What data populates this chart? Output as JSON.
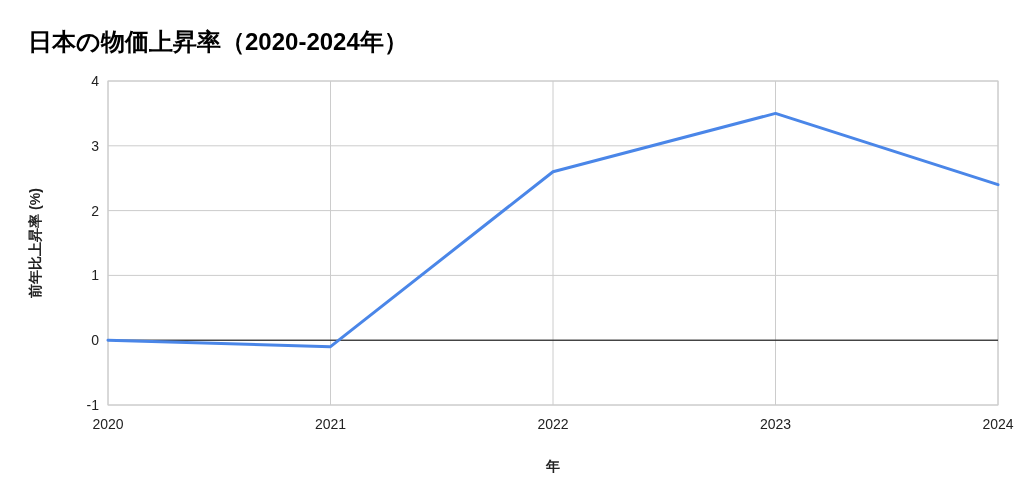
{
  "chart_data": {
    "type": "line",
    "title": "日本の物価上昇率（2020-2024年）",
    "xlabel": "年",
    "ylabel": "前年比上昇率 (%)",
    "x": [
      2020,
      2021,
      2022,
      2023,
      2024
    ],
    "series": [
      {
        "color": "#4a86e8",
        "values": [
          0,
          -0.1,
          2.6,
          3.5,
          2.4
        ]
      }
    ],
    "xlim": [
      2020,
      2024
    ],
    "xticks": [
      2020,
      2021,
      2022,
      2023,
      2024
    ],
    "ylim": [
      -1,
      4
    ],
    "yticks": [
      -1,
      0,
      1,
      2,
      3,
      4
    ],
    "grid": true,
    "ref_lines": [
      {
        "axis": "y",
        "value": 0,
        "color": "#000000"
      }
    ]
  }
}
